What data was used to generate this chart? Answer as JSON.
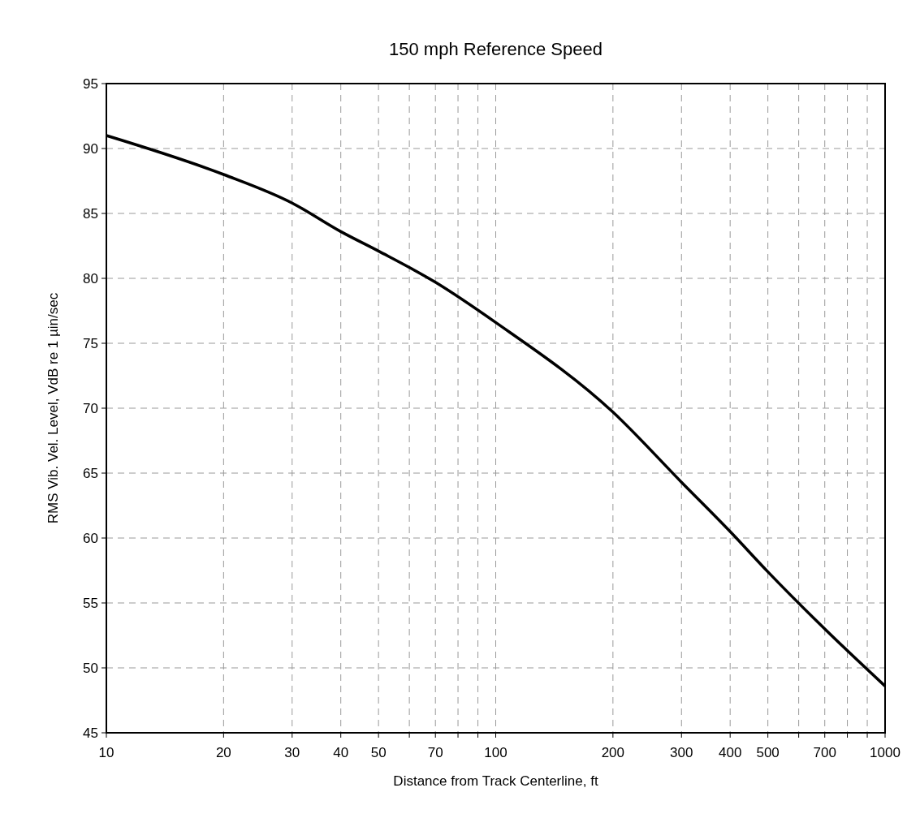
{
  "chart_data": {
    "type": "line",
    "title": "150 mph Reference Speed",
    "xlabel": "Distance from Track Centerline, ft",
    "ylabel": "RMS Vib. Vel. Level, VdB re 1 µin/sec",
    "log": "x",
    "grid": true,
    "marker": "none",
    "line_style": "solid",
    "xlim": [
      10,
      1000
    ],
    "ylim": [
      45,
      95
    ],
    "xticks": [
      10,
      20,
      30,
      40,
      50,
      {
        "value": 60,
        "label": null
      },
      70,
      {
        "value": 80,
        "label": null
      },
      {
        "value": 90,
        "label": null
      },
      100,
      200,
      300,
      400,
      500,
      {
        "value": 600,
        "label": null
      },
      700,
      {
        "value": 800,
        "label": null
      },
      {
        "value": 900,
        "label": null
      },
      1000
    ],
    "yticks": [
      45,
      50,
      55,
      60,
      65,
      70,
      75,
      80,
      85,
      90,
      95
    ],
    "series": [
      {
        "color": "#000000",
        "x": [
          10,
          20,
          30,
          40,
          50,
          70,
          100,
          200,
          300,
          400,
          500,
          700,
          1000
        ],
        "values": [
          91.0,
          88.0,
          85.8,
          83.6,
          82.1,
          79.7,
          76.6,
          69.7,
          64.3,
          60.5,
          57.4,
          53.0,
          48.6
        ]
      }
    ]
  }
}
